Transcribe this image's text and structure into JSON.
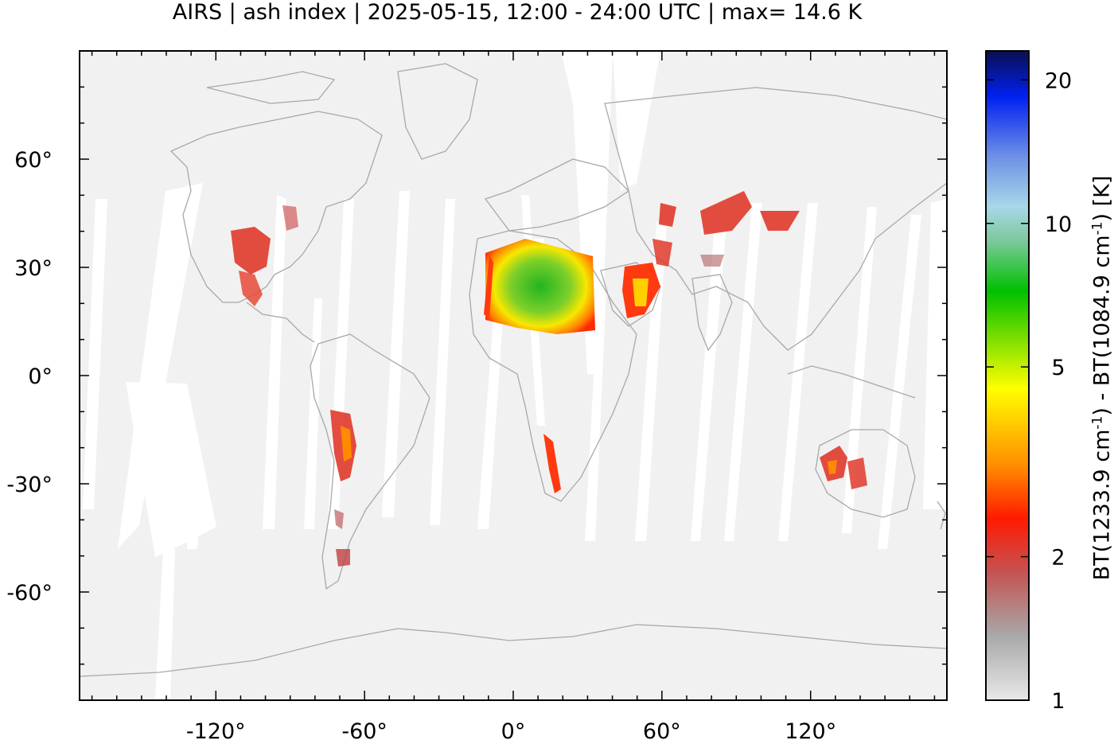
{
  "title": "AIRS | ash index | 2025-05-15, 12:00 - 24:00 UTC | max= 14.6 K",
  "map": {
    "lon_range": [
      -175,
      175
    ],
    "lat_range": [
      -90,
      90
    ],
    "x_ticks": [
      {
        "value": -120,
        "label": "-120°"
      },
      {
        "value": -60,
        "label": "-60°"
      },
      {
        "value": 0,
        "label": "0°"
      },
      {
        "value": 60,
        "label": "60°"
      },
      {
        "value": 120,
        "label": "120°"
      }
    ],
    "y_ticks": [
      {
        "value": 60,
        "label": "60°"
      },
      {
        "value": 30,
        "label": "30°"
      },
      {
        "value": 0,
        "label": "0°"
      },
      {
        "value": -30,
        "label": "-30°"
      },
      {
        "value": -60,
        "label": "-60°"
      }
    ],
    "background_color": "#f1f1f1",
    "coastline_color": "#a8a8a8",
    "gap_color": "#ffffff"
  },
  "colorbar": {
    "label_parts": {
      "a": "BT(1233.9 cm",
      "exp1": "-1",
      "b": ") - BT(1084.9 cm",
      "exp2": "-1",
      "c": ") [K]"
    },
    "ticks": [
      {
        "value": 1,
        "label": "1"
      },
      {
        "value": 2,
        "label": "2"
      },
      {
        "value": 5,
        "label": "5"
      },
      {
        "value": 10,
        "label": "10"
      },
      {
        "value": 20,
        "label": "20"
      }
    ],
    "range": [
      1,
      23
    ],
    "scale": "log",
    "colors": [
      "#e6e6e6",
      "#9a9a9a",
      "#c94a4a",
      "#ff0000",
      "#ff8a00",
      "#ffff00",
      "#00c000",
      "#8fd8c0",
      "#7b9ce6",
      "#0030ff",
      "#000a55"
    ]
  }
}
